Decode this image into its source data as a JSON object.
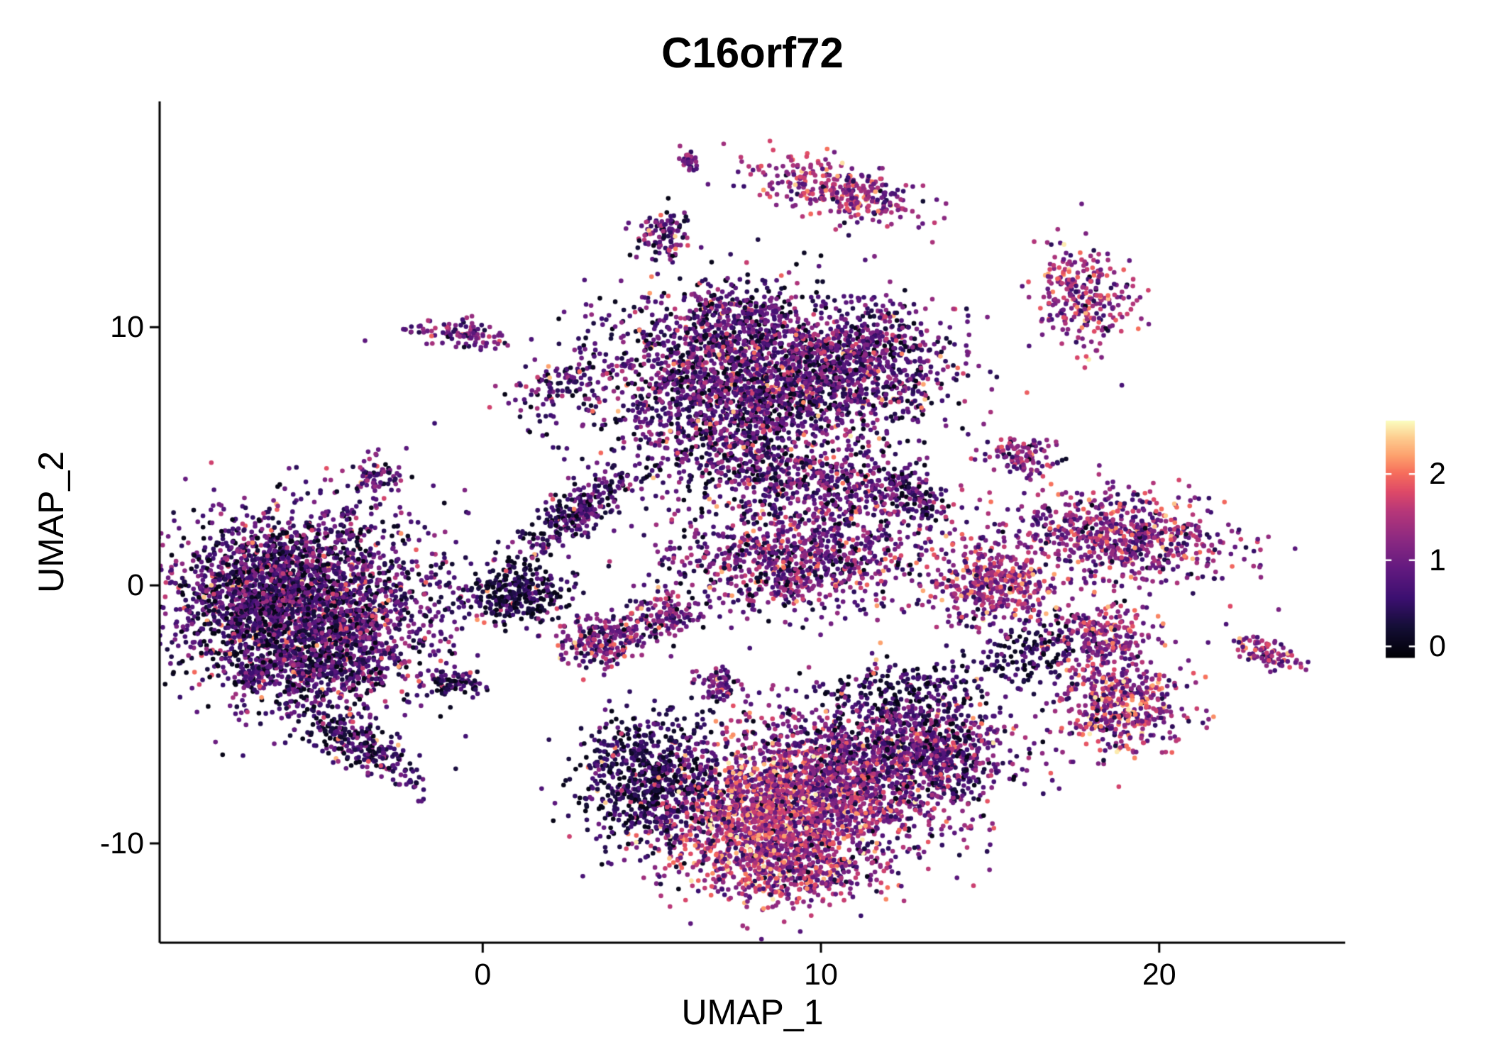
{
  "title": "C16orf72",
  "axes": {
    "x": {
      "label": "UMAP_1",
      "ticks": [
        0,
        10,
        20
      ],
      "range": [
        -9.55,
        25.5
      ]
    },
    "y": {
      "label": "UMAP_2",
      "ticks": [
        -10,
        0,
        10
      ],
      "range": [
        -13.85,
        18.75
      ]
    }
  },
  "colorbar": {
    "ticks": [
      0,
      1,
      2
    ],
    "domain": [
      -0.13,
      2.62
    ],
    "stops": [
      [
        0.0,
        "#000004"
      ],
      [
        0.13,
        "#140e36"
      ],
      [
        0.25,
        "#3b0f70"
      ],
      [
        0.38,
        "#641a80"
      ],
      [
        0.5,
        "#8c2981"
      ],
      [
        0.62,
        "#b73779"
      ],
      [
        0.7,
        "#de4968"
      ],
      [
        0.78,
        "#f66e5c"
      ],
      [
        0.85,
        "#fd9f6c"
      ],
      [
        0.93,
        "#fdcd90"
      ],
      [
        1.0,
        "#fbfcbf"
      ]
    ]
  },
  "chart_data": {
    "type": "scatter",
    "title": "C16orf72",
    "xlabel": "UMAP_1",
    "ylabel": "UMAP_2",
    "xlim": [
      -9.55,
      25.5
    ],
    "ylim": [
      -13.85,
      18.75
    ],
    "grid": false,
    "legend_position": "right",
    "colormap": "magma",
    "color_domain": [
      -0.13,
      2.62
    ],
    "legend_ticks": [
      0,
      1,
      2
    ],
    "point_radius_px": 3.3,
    "seed": 42,
    "n_points_approx": 17860,
    "clusters": [
      {
        "name": "left-main",
        "x": -5.3,
        "y": -0.6,
        "sx": 2.0,
        "sy": 1.8,
        "rot": 0,
        "n": 2400,
        "e": 0.7,
        "es": 0.55
      },
      {
        "name": "left-main-core",
        "x": -6.3,
        "y": -0.3,
        "sx": 1.2,
        "sy": 1.2,
        "rot": 0,
        "n": 600,
        "e": 0.5,
        "es": 0.45
      },
      {
        "name": "left-lower",
        "x": -4.6,
        "y": -3.2,
        "sx": 1.3,
        "sy": 0.9,
        "rot": 20,
        "n": 500,
        "e": 0.55,
        "es": 0.5
      },
      {
        "name": "left-tail",
        "x": -3.6,
        "y": -6.3,
        "sx": 1.1,
        "sy": 0.4,
        "rot": -38,
        "n": 260,
        "e": 0.5,
        "es": 0.45
      },
      {
        "name": "left-tiny-appendix",
        "x": -6.7,
        "y": -3.5,
        "sx": 0.25,
        "sy": 0.2,
        "rot": 0,
        "n": 40,
        "e": 0.6,
        "es": 0.4
      },
      {
        "name": "small-upper-left",
        "x": -3.2,
        "y": 4.3,
        "sx": 0.35,
        "sy": 0.4,
        "rot": 0,
        "n": 70,
        "e": 0.8,
        "es": 0.5
      },
      {
        "name": "small-pink-topleft",
        "x": -0.6,
        "y": 9.7,
        "sx": 0.75,
        "sy": 0.28,
        "rot": -8,
        "n": 100,
        "e": 1.0,
        "es": 0.45
      },
      {
        "name": "small-dark-top",
        "x": 2.3,
        "y": 7.7,
        "sx": 0.75,
        "sy": 0.45,
        "rot": 30,
        "n": 90,
        "e": 0.65,
        "es": 0.45
      },
      {
        "name": "connector-clump",
        "x": 0.9,
        "y": -0.4,
        "sx": 0.8,
        "sy": 0.55,
        "rot": 0,
        "n": 320,
        "e": 0.3,
        "es": 0.3
      },
      {
        "name": "connector-streak",
        "x": 2.7,
        "y": 2.7,
        "sx": 1.3,
        "sy": 0.38,
        "rot": 48,
        "n": 300,
        "e": 0.55,
        "es": 0.4
      },
      {
        "name": "top-main",
        "x": 8.1,
        "y": 8.0,
        "sx": 2.5,
        "sy": 1.5,
        "rot": 0,
        "n": 2300,
        "e": 0.75,
        "es": 0.55
      },
      {
        "name": "top-main-upper",
        "x": 7.4,
        "y": 10.6,
        "sx": 1.0,
        "sy": 0.75,
        "rot": 0,
        "n": 220,
        "e": 0.7,
        "es": 0.5
      },
      {
        "name": "top-main-right",
        "x": 11.5,
        "y": 8.8,
        "sx": 1.1,
        "sy": 1.1,
        "rot": 0,
        "n": 450,
        "e": 0.8,
        "es": 0.55
      },
      {
        "name": "mid-upper",
        "x": 9.8,
        "y": 3.9,
        "sx": 1.8,
        "sy": 0.9,
        "rot": -15,
        "n": 600,
        "e": 0.85,
        "es": 0.55
      },
      {
        "name": "mid-band",
        "x": 9.2,
        "y": 0.9,
        "sx": 1.9,
        "sy": 1.0,
        "rot": 0,
        "n": 900,
        "e": 0.9,
        "es": 0.55
      },
      {
        "name": "mid-diag-tail",
        "x": 12.7,
        "y": 3.6,
        "sx": 0.7,
        "sy": 0.35,
        "rot": -45,
        "n": 140,
        "e": 0.6,
        "es": 0.45
      },
      {
        "name": "mid-scatter",
        "x": 6.8,
        "y": 5.6,
        "sx": 1.4,
        "sy": 1.2,
        "rot": 0,
        "n": 260,
        "e": 0.5,
        "es": 0.45
      },
      {
        "name": "small-left-mid",
        "x": 3.7,
        "y": -2.1,
        "sx": 0.8,
        "sy": 0.5,
        "rot": 10,
        "n": 260,
        "e": 1.0,
        "es": 0.5
      },
      {
        "name": "small-left-mid2",
        "x": 5.4,
        "y": -1.1,
        "sx": 0.45,
        "sy": 0.4,
        "rot": 0,
        "n": 120,
        "e": 1.05,
        "es": 0.5
      },
      {
        "name": "tiny-mid",
        "x": 7.0,
        "y": -3.8,
        "sx": 0.35,
        "sy": 0.3,
        "rot": 0,
        "n": 70,
        "e": 0.9,
        "es": 0.5
      },
      {
        "name": "tiny-dark-left",
        "x": -0.8,
        "y": -3.8,
        "sx": 0.45,
        "sy": 0.28,
        "rot": 0,
        "n": 80,
        "e": 0.45,
        "es": 0.4
      },
      {
        "name": "bottom-left-dark",
        "x": 5.0,
        "y": -7.6,
        "sx": 1.1,
        "sy": 1.3,
        "rot": 0,
        "n": 750,
        "e": 0.35,
        "es": 0.35
      },
      {
        "name": "bottom-core-bright",
        "x": 8.3,
        "y": -9.2,
        "sx": 1.5,
        "sy": 1.4,
        "rot": 0,
        "n": 1500,
        "e": 1.5,
        "es": 0.55
      },
      {
        "name": "bottom-mid",
        "x": 10.7,
        "y": -7.5,
        "sx": 1.9,
        "sy": 1.5,
        "rot": 0,
        "n": 1400,
        "e": 1.0,
        "es": 0.55
      },
      {
        "name": "bottom-right",
        "x": 13.2,
        "y": -6.3,
        "sx": 1.3,
        "sy": 1.1,
        "rot": 0,
        "n": 650,
        "e": 0.8,
        "es": 0.55
      },
      {
        "name": "bottom-tail",
        "x": 9.6,
        "y": -11.2,
        "sx": 1.2,
        "sy": 0.5,
        "rot": 5,
        "n": 260,
        "e": 1.2,
        "es": 0.5
      },
      {
        "name": "bottom-top-scatter",
        "x": 12.4,
        "y": -4.3,
        "sx": 1.4,
        "sy": 0.8,
        "rot": 0,
        "n": 240,
        "e": 0.35,
        "es": 0.35
      },
      {
        "name": "right-mid-pink",
        "x": 15.1,
        "y": 0.1,
        "sx": 1.0,
        "sy": 0.75,
        "rot": 0,
        "n": 450,
        "e": 1.3,
        "es": 0.5
      },
      {
        "name": "right-cluster",
        "x": 18.9,
        "y": 1.9,
        "sx": 1.6,
        "sy": 0.85,
        "rot": -10,
        "n": 700,
        "e": 1.1,
        "es": 0.5
      },
      {
        "name": "small-right-upper",
        "x": 15.9,
        "y": 5.1,
        "sx": 0.55,
        "sy": 0.35,
        "rot": 0,
        "n": 110,
        "e": 1.1,
        "es": 0.5
      },
      {
        "name": "top-right",
        "x": 17.7,
        "y": 11.1,
        "sx": 0.7,
        "sy": 1.0,
        "rot": 15,
        "n": 280,
        "e": 1.3,
        "es": 0.55
      },
      {
        "name": "top-center-elongated",
        "x": 10.4,
        "y": 15.3,
        "sx": 1.3,
        "sy": 0.5,
        "rot": -18,
        "n": 330,
        "e": 1.3,
        "es": 0.5
      },
      {
        "name": "tiny-top",
        "x": 6.1,
        "y": 16.4,
        "sx": 0.18,
        "sy": 0.22,
        "rot": 0,
        "n": 30,
        "e": 1.0,
        "es": 0.4
      },
      {
        "name": "small-top-center",
        "x": 5.3,
        "y": 13.6,
        "sx": 0.4,
        "sy": 0.5,
        "rot": 0,
        "n": 110,
        "e": 0.8,
        "es": 0.5
      },
      {
        "name": "right-lower-a",
        "x": 18.2,
        "y": -1.9,
        "sx": 0.8,
        "sy": 0.6,
        "rot": 0,
        "n": 240,
        "e": 1.2,
        "es": 0.5
      },
      {
        "name": "right-lower-b",
        "x": 18.8,
        "y": -4.5,
        "sx": 0.95,
        "sy": 0.95,
        "rot": 0,
        "n": 480,
        "e": 1.3,
        "es": 0.55
      },
      {
        "name": "right-connector-scatter",
        "x": 16.2,
        "y": -2.6,
        "sx": 0.9,
        "sy": 0.75,
        "rot": 0,
        "n": 160,
        "e": 0.4,
        "es": 0.35
      },
      {
        "name": "far-right",
        "x": 23.1,
        "y": -2.6,
        "sx": 0.6,
        "sy": 0.25,
        "rot": -30,
        "n": 90,
        "e": 1.2,
        "es": 0.5
      }
    ]
  }
}
